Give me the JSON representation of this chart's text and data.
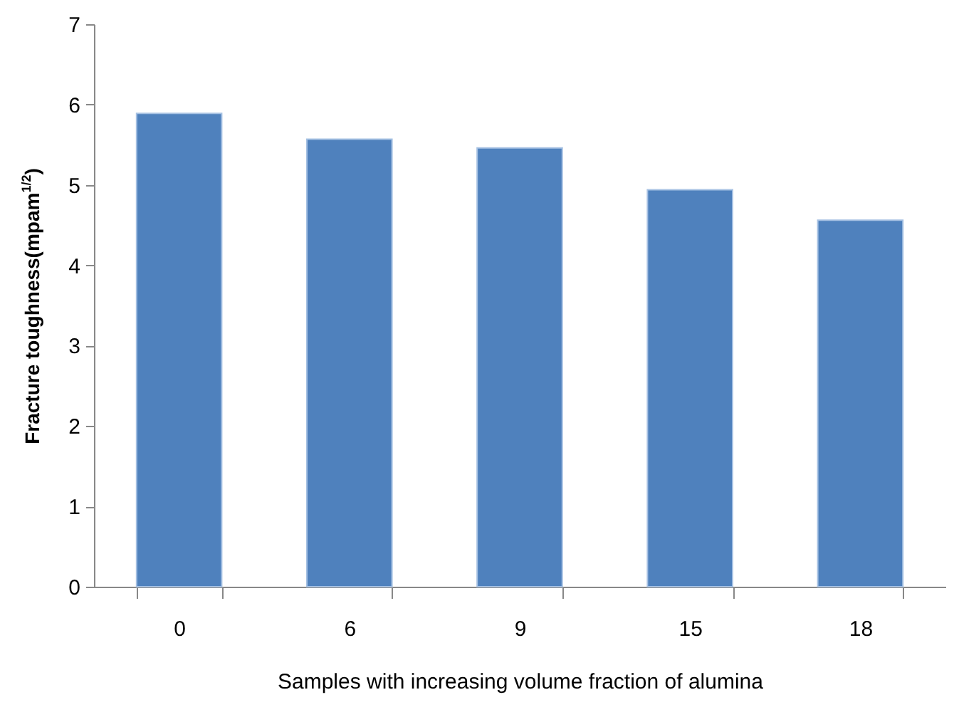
{
  "chart_data": {
    "type": "bar",
    "xlabel": "Samples with increasing volume fraction of alumina",
    "ylabel": "Fracture toughness(mpam$^{1/2}$)",
    "categories": [
      "0",
      "6",
      "9",
      "15",
      "18"
    ],
    "values": [
      5.89,
      5.57,
      5.46,
      4.94,
      4.56
    ],
    "color": "#4f81bd",
    "ylim": [
      0,
      7
    ],
    "yticks": [
      0,
      1,
      2,
      3,
      4,
      5,
      6,
      7
    ],
    "grid": false
  }
}
